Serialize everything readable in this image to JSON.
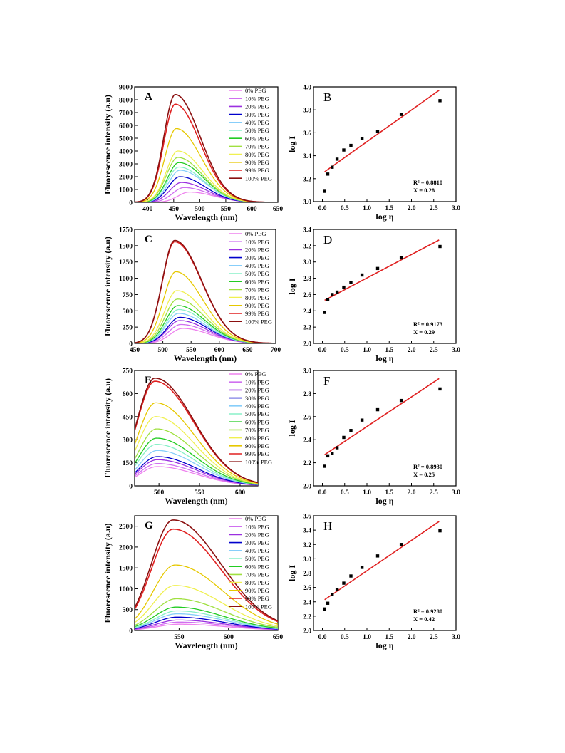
{
  "legend_labels": [
    "0% PEG",
    "10% PEG",
    "20% PEG",
    "30% PEG",
    "40% PEG",
    "50% PEG",
    "60% PEG",
    "70% PEG",
    "80% PEG",
    "90% PEG",
    "99% PEG",
    "100% PEG"
  ],
  "series_colors": [
    "#ee82ee",
    "#d070f0",
    "#9b30e0",
    "#0000cc",
    "#87cefa",
    "#88f0c8",
    "#22cc22",
    "#a0e040",
    "#f0f050",
    "#e6c800",
    "#e02020",
    "#8b1010"
  ],
  "fit_color": "#e02020",
  "chart_data": [
    {
      "panel": "A",
      "type": "line",
      "xlabel": "Wavelength (nm)",
      "ylabel": "Fluorescence intensity (a.u)",
      "xlim": [
        375,
        650
      ],
      "ylim": [
        0,
        9000
      ],
      "xticks": [
        400,
        450,
        500,
        550,
        600,
        650
      ],
      "yticks": [
        0,
        1000,
        2000,
        3000,
        4000,
        5000,
        6000,
        7000,
        8000,
        9000
      ],
      "series": [
        {
          "name": "0% PEG",
          "peak_x": 480,
          "peak_y": 800
        },
        {
          "name": "10% PEG",
          "peak_x": 470,
          "peak_y": 1150
        },
        {
          "name": "20% PEG",
          "peak_x": 465,
          "peak_y": 1550
        },
        {
          "name": "30% PEG",
          "peak_x": 462,
          "peak_y": 2000
        },
        {
          "name": "40% PEG",
          "peak_x": 462,
          "peak_y": 2500
        },
        {
          "name": "50% PEG",
          "peak_x": 460,
          "peak_y": 2750
        },
        {
          "name": "60% PEG",
          "peak_x": 460,
          "peak_y": 3100
        },
        {
          "name": "70% PEG",
          "peak_x": 458,
          "peak_y": 3500
        },
        {
          "name": "80% PEG",
          "peak_x": 458,
          "peak_y": 4000
        },
        {
          "name": "90% PEG",
          "peak_x": 455,
          "peak_y": 5750
        },
        {
          "name": "99% PEG",
          "peak_x": 453,
          "peak_y": 7650
        },
        {
          "name": "100% PEG",
          "peak_x": 453,
          "peak_y": 8400
        }
      ]
    },
    {
      "panel": "B",
      "type": "scatter",
      "xlabel": "log η",
      "ylabel": "log I",
      "xlim": [
        -0.2,
        3.0
      ],
      "ylim": [
        3.0,
        4.0
      ],
      "xticks": [
        0.0,
        0.5,
        1.0,
        1.5,
        2.0,
        2.5,
        3.0
      ],
      "yticks": [
        3.0,
        3.2,
        3.4,
        3.6,
        3.8,
        4.0
      ],
      "points": [
        [
          0.05,
          3.09
        ],
        [
          0.12,
          3.24
        ],
        [
          0.22,
          3.3
        ],
        [
          0.33,
          3.37
        ],
        [
          0.48,
          3.45
        ],
        [
          0.64,
          3.49
        ],
        [
          0.89,
          3.55
        ],
        [
          1.24,
          3.61
        ],
        [
          1.77,
          3.76
        ],
        [
          2.64,
          3.88
        ]
      ],
      "fit": [
        [
          0.05,
          3.26
        ],
        [
          2.62,
          3.97
        ]
      ],
      "annotation": {
        "r2": "R² = 0.8810",
        "x": "X = 0.28"
      }
    },
    {
      "panel": "C",
      "type": "line",
      "xlabel": "Wavelength (nm)",
      "ylabel": "Fluorescence intensity (a.u)",
      "xlim": [
        450,
        700
      ],
      "ylim": [
        0,
        1750
      ],
      "xticks": [
        450,
        500,
        550,
        600,
        650,
        700
      ],
      "yticks": [
        0,
        250,
        500,
        750,
        1000,
        1250,
        1500,
        1750
      ],
      "series": [
        {
          "name": "0% PEG",
          "peak_x": 535,
          "peak_y": 230
        },
        {
          "name": "10% PEG",
          "peak_x": 532,
          "peak_y": 290
        },
        {
          "name": "20% PEG",
          "peak_x": 530,
          "peak_y": 350
        },
        {
          "name": "30% PEG",
          "peak_x": 530,
          "peak_y": 400
        },
        {
          "name": "40% PEG",
          "peak_x": 528,
          "peak_y": 460
        },
        {
          "name": "50% PEG",
          "peak_x": 528,
          "peak_y": 520
        },
        {
          "name": "60% PEG",
          "peak_x": 527,
          "peak_y": 580
        },
        {
          "name": "70% PEG",
          "peak_x": 526,
          "peak_y": 680
        },
        {
          "name": "80% PEG",
          "peak_x": 525,
          "peak_y": 810
        },
        {
          "name": "90% PEG",
          "peak_x": 523,
          "peak_y": 1100
        },
        {
          "name": "99% PEG",
          "peak_x": 521,
          "peak_y": 1560
        },
        {
          "name": "100% PEG",
          "peak_x": 521,
          "peak_y": 1580
        }
      ]
    },
    {
      "panel": "D",
      "type": "scatter",
      "xlabel": "log η",
      "ylabel": "log I",
      "xlim": [
        -0.2,
        3.0
      ],
      "ylim": [
        2.0,
        3.4
      ],
      "xticks": [
        0.0,
        0.5,
        1.0,
        1.5,
        2.0,
        2.5,
        3.0
      ],
      "yticks": [
        2.0,
        2.2,
        2.4,
        2.6,
        2.8,
        3.0,
        3.2,
        3.4
      ],
      "points": [
        [
          0.05,
          2.38
        ],
        [
          0.12,
          2.54
        ],
        [
          0.22,
          2.6
        ],
        [
          0.33,
          2.63
        ],
        [
          0.48,
          2.69
        ],
        [
          0.64,
          2.75
        ],
        [
          0.89,
          2.84
        ],
        [
          1.24,
          2.92
        ],
        [
          1.77,
          3.05
        ],
        [
          2.64,
          3.19
        ]
      ],
      "fit": [
        [
          0.05,
          2.53
        ],
        [
          2.62,
          3.27
        ]
      ],
      "annotation": {
        "r2": "R² = 0.9173",
        "x": "X = 0.29"
      }
    },
    {
      "panel": "E",
      "type": "line",
      "xlabel": "Wavelength (nm)",
      "ylabel": "Fluorescence intensity (a.u)",
      "xlim": [
        470,
        622
      ],
      "ylim": [
        0,
        750
      ],
      "xticks": [
        500,
        550,
        600
      ],
      "yticks": [
        0,
        150,
        300,
        450,
        600,
        750
      ],
      "series": [
        {
          "name": "0% PEG",
          "peak_x": 498,
          "peak_y": 125
        },
        {
          "name": "10% PEG",
          "peak_x": 498,
          "peak_y": 145
        },
        {
          "name": "20% PEG",
          "peak_x": 498,
          "peak_y": 170
        },
        {
          "name": "30% PEG",
          "peak_x": 498,
          "peak_y": 190
        },
        {
          "name": "40% PEG",
          "peak_x": 498,
          "peak_y": 230
        },
        {
          "name": "50% PEG",
          "peak_x": 497,
          "peak_y": 270
        },
        {
          "name": "60% PEG",
          "peak_x": 497,
          "peak_y": 310
        },
        {
          "name": "70% PEG",
          "peak_x": 497,
          "peak_y": 370
        },
        {
          "name": "80% PEG",
          "peak_x": 496,
          "peak_y": 450
        },
        {
          "name": "90% PEG",
          "peak_x": 496,
          "peak_y": 540
        },
        {
          "name": "99% PEG",
          "peak_x": 495,
          "peak_y": 680
        },
        {
          "name": "100% PEG",
          "peak_x": 495,
          "peak_y": 700
        }
      ]
    },
    {
      "panel": "F",
      "type": "scatter",
      "xlabel": "log η",
      "ylabel": "log I",
      "xlim": [
        -0.2,
        3.0
      ],
      "ylim": [
        2.0,
        3.0
      ],
      "xticks": [
        0.0,
        0.5,
        1.0,
        1.5,
        2.0,
        2.5,
        3.0
      ],
      "yticks": [
        2.0,
        2.2,
        2.4,
        2.6,
        2.8,
        3.0
      ],
      "points": [
        [
          0.05,
          2.17
        ],
        [
          0.12,
          2.26
        ],
        [
          0.22,
          2.28
        ],
        [
          0.33,
          2.33
        ],
        [
          0.48,
          2.42
        ],
        [
          0.64,
          2.48
        ],
        [
          0.89,
          2.57
        ],
        [
          1.24,
          2.66
        ],
        [
          1.77,
          2.74
        ],
        [
          2.64,
          2.84
        ]
      ],
      "fit": [
        [
          0.05,
          2.27
        ],
        [
          2.62,
          2.93
        ]
      ],
      "annotation": {
        "r2": "R² = 0.8930",
        "x": "X = 0.25"
      }
    },
    {
      "panel": "G",
      "type": "line",
      "xlabel": "Wavelength (nm)",
      "ylabel": "Fluorescence intensity (a.u)",
      "xlim": [
        505,
        650
      ],
      "ylim": [
        0,
        2750
      ],
      "xticks": [
        550,
        600,
        650
      ],
      "yticks": [
        0,
        500,
        1000,
        1500,
        2000,
        2500
      ],
      "series": [
        {
          "name": "0% PEG",
          "peak_x": 550,
          "peak_y": 150
        },
        {
          "name": "10% PEG",
          "peak_x": 550,
          "peak_y": 200
        },
        {
          "name": "20% PEG",
          "peak_x": 549,
          "peak_y": 250
        },
        {
          "name": "30% PEG",
          "peak_x": 548,
          "peak_y": 320
        },
        {
          "name": "40% PEG",
          "peak_x": 548,
          "peak_y": 400
        },
        {
          "name": "50% PEG",
          "peak_x": 548,
          "peak_y": 470
        },
        {
          "name": "60% PEG",
          "peak_x": 547,
          "peak_y": 560
        },
        {
          "name": "70% PEG",
          "peak_x": 547,
          "peak_y": 760
        },
        {
          "name": "80% PEG",
          "peak_x": 546,
          "peak_y": 1080
        },
        {
          "name": "90% PEG",
          "peak_x": 546,
          "peak_y": 1570
        },
        {
          "name": "99% PEG",
          "peak_x": 544,
          "peak_y": 2430
        },
        {
          "name": "100% PEG",
          "peak_x": 544,
          "peak_y": 2650
        }
      ]
    },
    {
      "panel": "H",
      "type": "scatter",
      "xlabel": "log η",
      "ylabel": "log I",
      "xlim": [
        -0.2,
        3.0
      ],
      "ylim": [
        2.0,
        3.6
      ],
      "xticks": [
        0.0,
        0.5,
        1.0,
        1.5,
        2.0,
        2.5,
        3.0
      ],
      "yticks": [
        2.0,
        2.2,
        2.4,
        2.6,
        2.8,
        3.0,
        3.2,
        3.4,
        3.6
      ],
      "points": [
        [
          0.05,
          2.3
        ],
        [
          0.12,
          2.38
        ],
        [
          0.22,
          2.5
        ],
        [
          0.33,
          2.57
        ],
        [
          0.48,
          2.66
        ],
        [
          0.64,
          2.76
        ],
        [
          0.89,
          2.88
        ],
        [
          1.24,
          3.04
        ],
        [
          1.77,
          3.2
        ],
        [
          2.64,
          3.39
        ]
      ],
      "fit": [
        [
          0.05,
          2.43
        ],
        [
          2.62,
          3.52
        ]
      ],
      "annotation": {
        "r2": "R² = 0.9280",
        "x": "X = 0.42"
      }
    }
  ]
}
